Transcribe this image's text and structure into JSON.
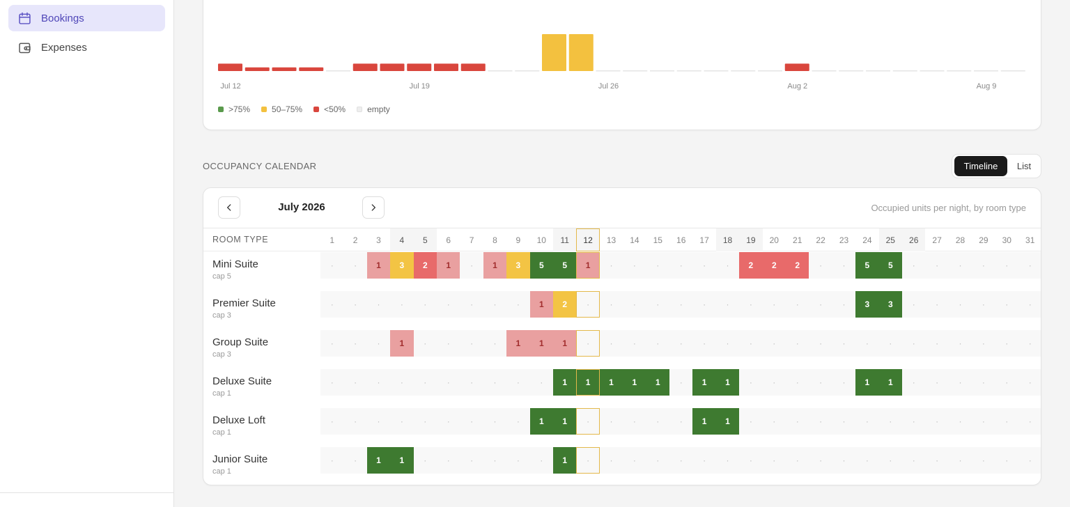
{
  "nav": {
    "bookings": "Bookings",
    "expenses": "Expenses"
  },
  "chart_data": {
    "type": "bar",
    "title": "",
    "x_tick_labels": [
      "Jul 12",
      "Jul 19",
      "Jul 26",
      "Aug 2",
      "Aug 9"
    ],
    "categories": [
      "Jul 12",
      "Jul 13",
      "Jul 14",
      "Jul 15",
      "Jul 16",
      "Jul 17",
      "Jul 18",
      "Jul 19",
      "Jul 20",
      "Jul 21",
      "Jul 22",
      "Jul 23",
      "Jul 24",
      "Jul 25",
      "Jul 26",
      "Jul 27",
      "Jul 28",
      "Jul 29",
      "Jul 30",
      "Jul 31",
      "Aug 1",
      "Aug 2",
      "Aug 3",
      "Aug 4",
      "Aug 5",
      "Aug 6",
      "Aug 7",
      "Aug 8",
      "Aug 9",
      "Aug 10"
    ],
    "values": [
      20,
      10,
      10,
      10,
      0,
      20,
      20,
      20,
      20,
      20,
      0,
      0,
      100,
      100,
      0,
      0,
      0,
      0,
      0,
      0,
      0,
      20,
      0,
      0,
      0,
      0,
      0,
      0,
      0,
      0
    ],
    "colors": [
      "red",
      "red",
      "red",
      "red",
      "empty",
      "red",
      "red",
      "red",
      "red",
      "red",
      "empty",
      "empty",
      "yellow",
      "yellow",
      "empty",
      "empty",
      "empty",
      "empty",
      "empty",
      "empty",
      "empty",
      "red",
      "empty",
      "empty",
      "empty",
      "empty",
      "empty",
      "empty",
      "empty",
      "empty"
    ],
    "ylim": [
      0,
      100
    ],
    "legend": [
      {
        "key": "green",
        "label": ">75%",
        "color": "#5a9a4c"
      },
      {
        "key": "yellow",
        "label": "50–75%",
        "color": "#f3c13f"
      },
      {
        "key": "red",
        "label": "<50%",
        "color": "#d9463d"
      },
      {
        "key": "empty",
        "label": "empty",
        "color": "#eeeeee"
      }
    ],
    "legend_position": "bottom-left",
    "grid": false
  },
  "section": {
    "title": "OCCUPANCY CALENDAR",
    "views": [
      "Timeline",
      "List"
    ],
    "active_view": "Timeline"
  },
  "calendar": {
    "month": "July 2026",
    "caption": "Occupied units per night, by room type",
    "room_type_header": "ROOM TYPE",
    "days": 31,
    "weekends": [
      4,
      5,
      11,
      12,
      18,
      19,
      25,
      26
    ],
    "today": 12,
    "colors": {
      "green": "#3e7a30",
      "yellow": "#f3c444",
      "red": "#e86a6a",
      "pink": "#e9a0a0"
    },
    "rooms": [
      {
        "name": "Mini Suite",
        "cap": "cap 5",
        "cells": [
          {
            "d": 3,
            "v": "1",
            "c": "pink"
          },
          {
            "d": 4,
            "v": "3",
            "c": "yellow"
          },
          {
            "d": 5,
            "v": "2",
            "c": "red"
          },
          {
            "d": 6,
            "v": "1",
            "c": "pink"
          },
          {
            "d": 8,
            "v": "1",
            "c": "pink"
          },
          {
            "d": 9,
            "v": "3",
            "c": "yellow"
          },
          {
            "d": 10,
            "v": "5",
            "c": "green"
          },
          {
            "d": 11,
            "v": "5",
            "c": "green"
          },
          {
            "d": 12,
            "v": "1",
            "c": "pink"
          },
          {
            "d": 19,
            "v": "2",
            "c": "red"
          },
          {
            "d": 20,
            "v": "2",
            "c": "red"
          },
          {
            "d": 21,
            "v": "2",
            "c": "red"
          },
          {
            "d": 24,
            "v": "5",
            "c": "green"
          },
          {
            "d": 25,
            "v": "5",
            "c": "green"
          }
        ]
      },
      {
        "name": "Premier Suite",
        "cap": "cap 3",
        "cells": [
          {
            "d": 10,
            "v": "1",
            "c": "pink"
          },
          {
            "d": 11,
            "v": "2",
            "c": "yellow"
          },
          {
            "d": 24,
            "v": "3",
            "c": "green"
          },
          {
            "d": 25,
            "v": "3",
            "c": "green"
          }
        ]
      },
      {
        "name": "Group Suite",
        "cap": "cap 3",
        "cells": [
          {
            "d": 4,
            "v": "1",
            "c": "pink"
          },
          {
            "d": 9,
            "v": "1",
            "c": "pink"
          },
          {
            "d": 10,
            "v": "1",
            "c": "pink"
          },
          {
            "d": 11,
            "v": "1",
            "c": "pink"
          }
        ]
      },
      {
        "name": "Deluxe Suite",
        "cap": "cap 1",
        "cells": [
          {
            "d": 11,
            "v": "1",
            "c": "green"
          },
          {
            "d": 12,
            "v": "1",
            "c": "green"
          },
          {
            "d": 13,
            "v": "1",
            "c": "green"
          },
          {
            "d": 14,
            "v": "1",
            "c": "green"
          },
          {
            "d": 15,
            "v": "1",
            "c": "green"
          },
          {
            "d": 17,
            "v": "1",
            "c": "green"
          },
          {
            "d": 18,
            "v": "1",
            "c": "green"
          },
          {
            "d": 24,
            "v": "1",
            "c": "green"
          },
          {
            "d": 25,
            "v": "1",
            "c": "green"
          }
        ]
      },
      {
        "name": "Deluxe Loft",
        "cap": "cap 1",
        "cells": [
          {
            "d": 10,
            "v": "1",
            "c": "green"
          },
          {
            "d": 11,
            "v": "1",
            "c": "green"
          },
          {
            "d": 17,
            "v": "1",
            "c": "green"
          },
          {
            "d": 18,
            "v": "1",
            "c": "green"
          }
        ]
      },
      {
        "name": "Junior Suite",
        "cap": "cap 1",
        "cells": [
          {
            "d": 3,
            "v": "1",
            "c": "green"
          },
          {
            "d": 4,
            "v": "1",
            "c": "green"
          },
          {
            "d": 11,
            "v": "1",
            "c": "green"
          }
        ]
      }
    ]
  },
  "icons": {
    "bookings": "calendar-icon",
    "expenses": "wallet-icon",
    "prev": "chevron-left-icon",
    "next": "chevron-right-icon"
  }
}
